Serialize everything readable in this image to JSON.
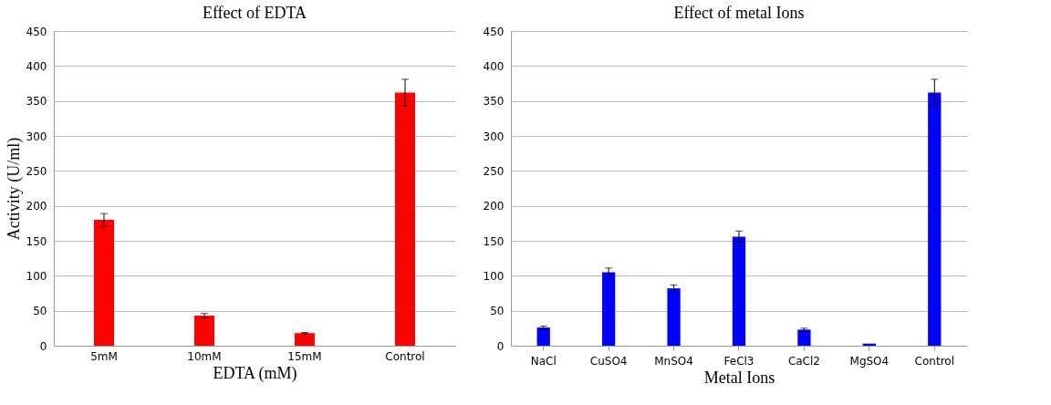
{
  "chart_data": [
    {
      "type": "bar",
      "title": "Effect of EDTA",
      "xlabel": "EDTA (mM)",
      "ylabel": "Activity  (U/ml)",
      "categories": [
        "5mM",
        "10mM",
        "15mM",
        "Control"
      ],
      "values": [
        180,
        43,
        18,
        362
      ],
      "errors": [
        9,
        3,
        1,
        19
      ],
      "color": "#ff0000",
      "ylim": [
        0,
        450
      ],
      "yticks": [
        0,
        50,
        100,
        150,
        200,
        250,
        300,
        350,
        400,
        450
      ],
      "grid": "y"
    },
    {
      "type": "bar",
      "title": "Effect of metal Ions",
      "xlabel": "Metal Ions",
      "categories": [
        "NaCl",
        "CuSO4",
        "MnSO4",
        "FeCl3",
        "CaCl2",
        "MgSO4",
        "Control"
      ],
      "values": [
        26,
        105,
        82,
        156,
        23,
        3,
        362
      ],
      "errors": [
        2,
        6,
        5,
        8,
        2,
        null,
        19
      ],
      "color": "#0000ff",
      "ylim": [
        0,
        450
      ],
      "yticks": [
        0,
        50,
        100,
        150,
        200,
        250,
        300,
        350,
        400,
        450
      ],
      "grid": "y"
    }
  ]
}
